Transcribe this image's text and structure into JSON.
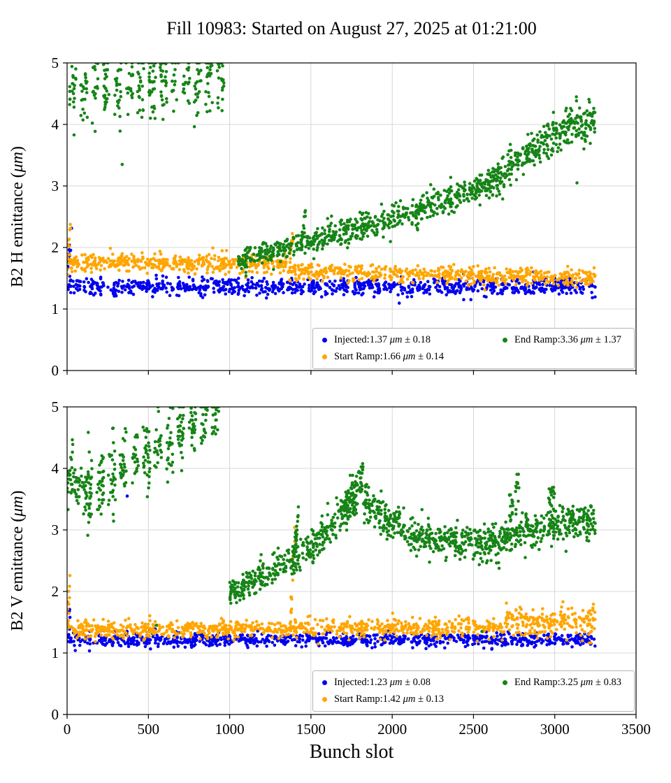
{
  "page_title": "Fill 10983: Started on August 27, 2025 at 01:21:00",
  "xlabel": "Bunch slot",
  "colors": {
    "injected": "#0000ee",
    "start_ramp": "#ffa500",
    "end_ramp": "#168416",
    "grid": "#cccccc",
    "spine": "#000000"
  },
  "chart_data": [
    {
      "type": "scatter",
      "ylabel": "B2 H emittance (μm)",
      "xlim": [
        0,
        3500
      ],
      "ylim": [
        0,
        5
      ],
      "xticks": [
        0,
        500,
        1000,
        1500,
        2000,
        2500,
        3000,
        3500
      ],
      "yticks": [
        0,
        1,
        2,
        3,
        4,
        5
      ],
      "show_xtick_labels": false,
      "grid": true,
      "legend": {
        "columns": [
          [
            "Injected",
            "Start Ramp"
          ],
          [
            "End Ramp"
          ]
        ]
      },
      "series": [
        {
          "name": "Injected",
          "color": "#0000ee",
          "mean": 1.37,
          "std": 0.18,
          "seed": 11,
          "legend_label": "Injected:1.37 μm ± 0.18",
          "segments": [
            {
              "x0": 2,
              "x1": 28,
              "y0": 1.75,
              "y1": 2.2,
              "spread": 0.13,
              "n": 12
            },
            {
              "x0": 0,
              "x1": 3250,
              "y0": 1.36,
              "y1": 1.36,
              "spread": 0.07,
              "n": 880
            }
          ]
        },
        {
          "name": "Start Ramp",
          "color": "#ffa500",
          "mean": 1.66,
          "std": 0.14,
          "seed": 22,
          "legend_label": "Start Ramp:1.66 μm ± 0.14",
          "segments": [
            {
              "x0": 2,
              "x1": 25,
              "y0": 1.85,
              "y1": 2.5,
              "spread": 0.12,
              "n": 14
            },
            {
              "x0": 0,
              "x1": 1350,
              "y0": 1.76,
              "y1": 1.74,
              "spread": 0.07,
              "n": 440
            },
            {
              "x0": 1350,
              "x1": 3250,
              "y0": 1.62,
              "y1": 1.5,
              "spread": 0.07,
              "n": 540
            },
            {
              "x0": 1368,
              "x1": 1398,
              "y0": 1.75,
              "y1": 2.35,
              "spread": 0.08,
              "n": 16
            }
          ]
        },
        {
          "name": "End Ramp",
          "color": "#168416",
          "mean": 3.36,
          "std": 1.37,
          "seed": 33,
          "legend_label": "End Ramp:3.36 μm ± 1.37",
          "segments": [
            {
              "x0": 0,
              "x1": 980,
              "y0": 4.55,
              "y1": 4.75,
              "spread": 0.3,
              "n": 310,
              "clusters": 14
            },
            {
              "x0": 338,
              "x1": 342,
              "y0": 3.35,
              "y1": 3.35,
              "spread": 0,
              "n": 1
            },
            {
              "x0": 1050,
              "x1": 1450,
              "y0": 1.78,
              "y1": 2.05,
              "spread": 0.09,
              "n": 160
            },
            {
              "x0": 1438,
              "x1": 1466,
              "y0": 2.0,
              "y1": 2.5,
              "spread": 0.08,
              "n": 24
            },
            {
              "x0": 1460,
              "x1": 2100,
              "y0": 2.05,
              "y1": 2.55,
              "spread": 0.11,
              "n": 260
            },
            {
              "x0": 2100,
              "x1": 2600,
              "y0": 2.55,
              "y1": 3.05,
              "spread": 0.12,
              "n": 210
            },
            {
              "x0": 2600,
              "x1": 3000,
              "y0": 3.05,
              "y1": 3.85,
              "spread": 0.15,
              "n": 200
            },
            {
              "x0": 3000,
              "x1": 3250,
              "y0": 3.85,
              "y1": 4.1,
              "spread": 0.17,
              "n": 130
            },
            {
              "x0": 3135,
              "x1": 3140,
              "y0": 3.05,
              "y1": 3.05,
              "spread": 0,
              "n": 1
            }
          ]
        }
      ]
    },
    {
      "type": "scatter",
      "ylabel": "B2 V emittance (μm)",
      "xlim": [
        0,
        3500
      ],
      "ylim": [
        0,
        5
      ],
      "xticks": [
        0,
        500,
        1000,
        1500,
        2000,
        2500,
        3000,
        3500
      ],
      "yticks": [
        0,
        1,
        2,
        3,
        4,
        5
      ],
      "show_xtick_labels": true,
      "grid": true,
      "legend": {
        "columns": [
          [
            "Injected",
            "Start Ramp"
          ],
          [
            "End Ramp"
          ]
        ]
      },
      "series": [
        {
          "name": "Injected",
          "color": "#0000ee",
          "mean": 1.23,
          "std": 0.08,
          "seed": 44,
          "legend_label": "Injected:1.23 μm ± 0.08",
          "segments": [
            {
              "x0": 2,
              "x1": 18,
              "y0": 1.3,
              "y1": 1.55,
              "spread": 0.12,
              "n": 8
            },
            {
              "x0": 0,
              "x1": 3250,
              "y0": 1.21,
              "y1": 1.21,
              "spread": 0.055,
              "n": 880
            },
            {
              "x0": 368,
              "x1": 372,
              "y0": 3.55,
              "y1": 3.55,
              "spread": 0,
              "n": 1
            }
          ]
        },
        {
          "name": "Start Ramp",
          "color": "#ffa500",
          "mean": 1.42,
          "std": 0.13,
          "seed": 55,
          "legend_label": "Start Ramp:1.42 μm ± 0.13",
          "segments": [
            {
              "x0": 2,
              "x1": 20,
              "y0": 1.5,
              "y1": 2.2,
              "spread": 0.14,
              "n": 12
            },
            {
              "x0": 0,
              "x1": 1350,
              "y0": 1.38,
              "y1": 1.38,
              "spread": 0.07,
              "n": 420
            },
            {
              "x0": 1350,
              "x1": 2700,
              "y0": 1.4,
              "y1": 1.42,
              "spread": 0.08,
              "n": 380
            },
            {
              "x0": 2700,
              "x1": 3250,
              "y0": 1.52,
              "y1": 1.5,
              "spread": 0.12,
              "n": 200
            },
            {
              "x0": 1375,
              "x1": 1400,
              "y0": 1.6,
              "y1": 2.85,
              "spread": 0.15,
              "n": 16
            }
          ]
        },
        {
          "name": "End Ramp",
          "color": "#168416",
          "mean": 3.25,
          "std": 0.83,
          "seed": 66,
          "legend_label": "End Ramp:3.25 μm ± 0.83",
          "segments": [
            {
              "x0": 0,
              "x1": 120,
              "y0": 3.9,
              "y1": 3.7,
              "spread": 0.18,
              "n": 60
            },
            {
              "x0": 100,
              "x1": 950,
              "y0": 3.55,
              "y1": 5.05,
              "spread": 0.27,
              "n": 340,
              "clusters": 12
            },
            {
              "x0": 1000,
              "x1": 1500,
              "y0": 1.95,
              "y1": 2.7,
              "spread": 0.12,
              "n": 220
            },
            {
              "x0": 1390,
              "x1": 1425,
              "y0": 2.4,
              "y1": 3.35,
              "spread": 0.12,
              "n": 28
            },
            {
              "x0": 1500,
              "x1": 1780,
              "y0": 2.7,
              "y1": 3.5,
              "spread": 0.15,
              "n": 150
            },
            {
              "x0": 1700,
              "x1": 1820,
              "y0": 3.3,
              "y1": 3.9,
              "spread": 0.15,
              "n": 60
            },
            {
              "x0": 1820,
              "x1": 2050,
              "y0": 3.45,
              "y1": 3.0,
              "spread": 0.15,
              "n": 130
            },
            {
              "x0": 2050,
              "x1": 2600,
              "y0": 2.95,
              "y1": 2.75,
              "spread": 0.14,
              "n": 260
            },
            {
              "x0": 2600,
              "x1": 2850,
              "y0": 2.8,
              "y1": 3.0,
              "spread": 0.15,
              "n": 130
            },
            {
              "x0": 2720,
              "x1": 2780,
              "y0": 3.3,
              "y1": 3.6,
              "spread": 0.18,
              "n": 25
            },
            {
              "x0": 2850,
              "x1": 3250,
              "y0": 3.0,
              "y1": 3.2,
              "spread": 0.14,
              "n": 220
            },
            {
              "x0": 2960,
              "x1": 3000,
              "y0": 3.4,
              "y1": 3.6,
              "spread": 0.12,
              "n": 18
            },
            {
              "x0": 548,
              "x1": 552,
              "y0": 1.45,
              "y1": 1.45,
              "spread": 0,
              "n": 1
            },
            {
              "x0": 2548,
              "x1": 2552,
              "y0": 1.35,
              "y1": 1.35,
              "spread": 0,
              "n": 1
            }
          ]
        }
      ]
    }
  ]
}
